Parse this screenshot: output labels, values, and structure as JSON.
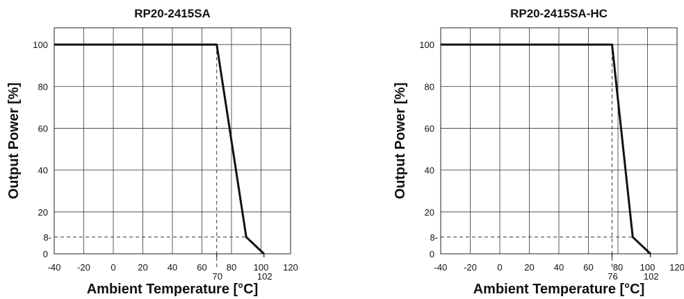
{
  "chart_data": [
    {
      "type": "line",
      "title": "RP20-2415SA",
      "xlabel": "Ambient Temperature [°C]",
      "ylabel": "Output Power [%]",
      "xlim": [
        -40,
        120
      ],
      "ylim": [
        0,
        108
      ],
      "x_ticks": [
        -40,
        -20,
        0,
        20,
        40,
        60,
        80,
        100,
        120
      ],
      "y_ticks": [
        0,
        20,
        40,
        60,
        80,
        100
      ],
      "extra_y_ticks": [
        8
      ],
      "extra_x_ticks": [
        70,
        102
      ],
      "grid": true,
      "series": [
        {
          "x": [
            -40,
            70,
            90,
            102
          ],
          "y": [
            100,
            100,
            8,
            0
          ]
        }
      ],
      "reference_lines": [
        {
          "orientation": "vertical",
          "x": 70,
          "y_from": 0,
          "y_to": 100
        },
        {
          "orientation": "horizontal",
          "y": 8,
          "x_from": -40,
          "x_to": 90
        }
      ]
    },
    {
      "type": "line",
      "title": "RP20-2415SA-HC",
      "xlabel": "Ambient Temperature [°C]",
      "ylabel": "Output Power [%]",
      "xlim": [
        -40,
        120
      ],
      "ylim": [
        0,
        108
      ],
      "x_ticks": [
        -40,
        -20,
        0,
        20,
        40,
        60,
        80,
        100,
        120
      ],
      "y_ticks": [
        0,
        20,
        40,
        60,
        80,
        100
      ],
      "extra_y_ticks": [
        8
      ],
      "extra_x_ticks": [
        76,
        102
      ],
      "grid": true,
      "series": [
        {
          "x": [
            -40,
            76,
            90,
            102
          ],
          "y": [
            100,
            100,
            8,
            0
          ]
        }
      ],
      "reference_lines": [
        {
          "orientation": "vertical",
          "x": 76,
          "y_from": 0,
          "y_to": 100
        },
        {
          "orientation": "horizontal",
          "y": 8,
          "x_from": -40,
          "x_to": 90
        }
      ]
    }
  ]
}
